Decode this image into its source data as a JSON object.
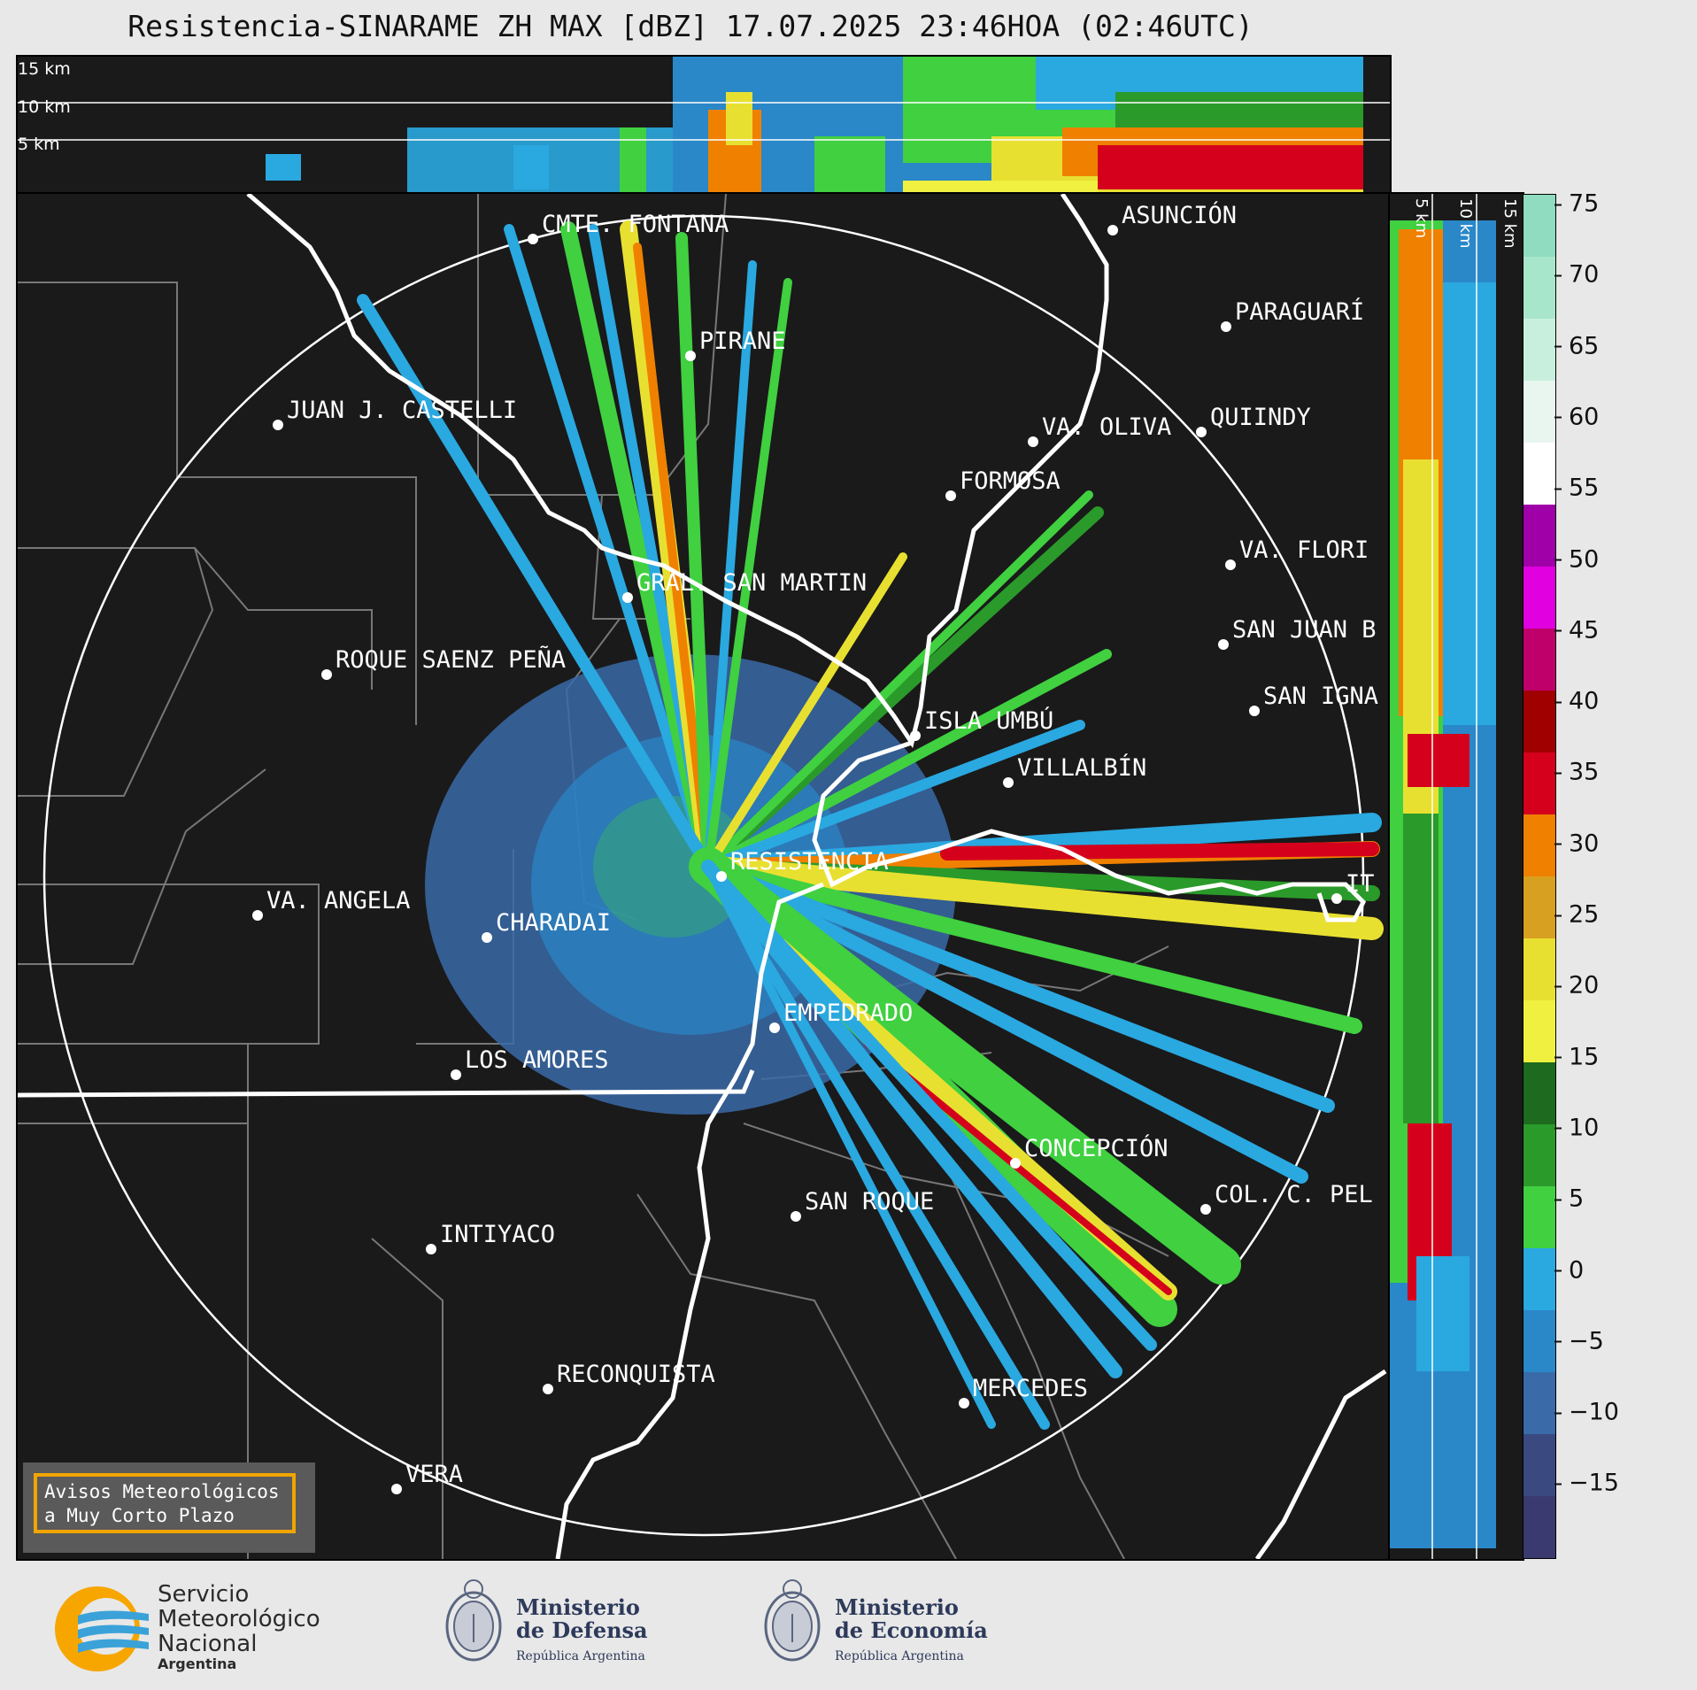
{
  "title": "Resistencia-SINARAME ZH MAX [dBZ] 17.07.2025 23:46HOA (02:46UTC)",
  "top_panel": {
    "labels": [
      "15 km",
      "10 km",
      "5 km"
    ]
  },
  "side_panel": {
    "labels": [
      "5 km",
      "10 km",
      "15 km"
    ]
  },
  "cities": [
    {
      "name": "CMTE. FONTANA"
    },
    {
      "name": "ASUNCIÓN"
    },
    {
      "name": "PIRANE"
    },
    {
      "name": "PARAGUARÍ"
    },
    {
      "name": "JUAN J. CASTELLI"
    },
    {
      "name": "VA. OLIVA"
    },
    {
      "name": "QUIINDY"
    },
    {
      "name": "FORMOSA"
    },
    {
      "name": "VA. FLORI"
    },
    {
      "name": "GRAL. SAN MARTIN"
    },
    {
      "name": "SAN JUAN B"
    },
    {
      "name": "ROQUE SAENZ PEÑA"
    },
    {
      "name": "SAN IGNA"
    },
    {
      "name": "ISLA UMBÚ"
    },
    {
      "name": "VILLALBÍN"
    },
    {
      "name": "RESISTENCIA"
    },
    {
      "name": "VA. ANGELA"
    },
    {
      "name": "CHARADAI"
    },
    {
      "name": "IT"
    },
    {
      "name": "EMPEDRADO"
    },
    {
      "name": "LOS AMORES"
    },
    {
      "name": "CONCEPCIÓN"
    },
    {
      "name": "SAN ROQUE"
    },
    {
      "name": "COL. C. PEL"
    },
    {
      "name": "INTIYACO"
    },
    {
      "name": "RECONQUISTA"
    },
    {
      "name": "MERCEDES"
    },
    {
      "name": "VERA"
    }
  ],
  "colorbar": {
    "unit": "dBZ",
    "ticks": [
      "75",
      "70",
      "65",
      "60",
      "55",
      "50",
      "45",
      "40",
      "35",
      "30",
      "25",
      "20",
      "15",
      "10",
      "5",
      "0",
      "−5",
      "−10",
      "−15"
    ],
    "colors": [
      "#8fdcc0",
      "#a8e6cc",
      "#c8efdd",
      "#e8f6ef",
      "#ffffff",
      "#a000a8",
      "#e000e0",
      "#c0006a",
      "#a00000",
      "#d4001c",
      "#f08000",
      "#d8a020",
      "#e8e030",
      "#f0f040",
      "#1e6a1e",
      "#2a9a2a",
      "#40d040",
      "#2aa8e0",
      "#2a88c8",
      "#3a6aa8",
      "#3a4a80",
      "#3a3a70"
    ]
  },
  "avisos": {
    "line1": "Avisos Meteorológicos",
    "line2": "a Muy Corto Plazo"
  },
  "logos": {
    "smn": {
      "line1": "Servicio",
      "line2": "Meteorológico",
      "line3": "Nacional",
      "line4": "Argentina"
    },
    "defensa": {
      "line1": "Ministerio",
      "line2": "de Defensa",
      "line3": "República Argentina"
    },
    "economia": {
      "line1": "Ministerio",
      "line2": "de Economía",
      "line3": "República Argentina"
    }
  }
}
